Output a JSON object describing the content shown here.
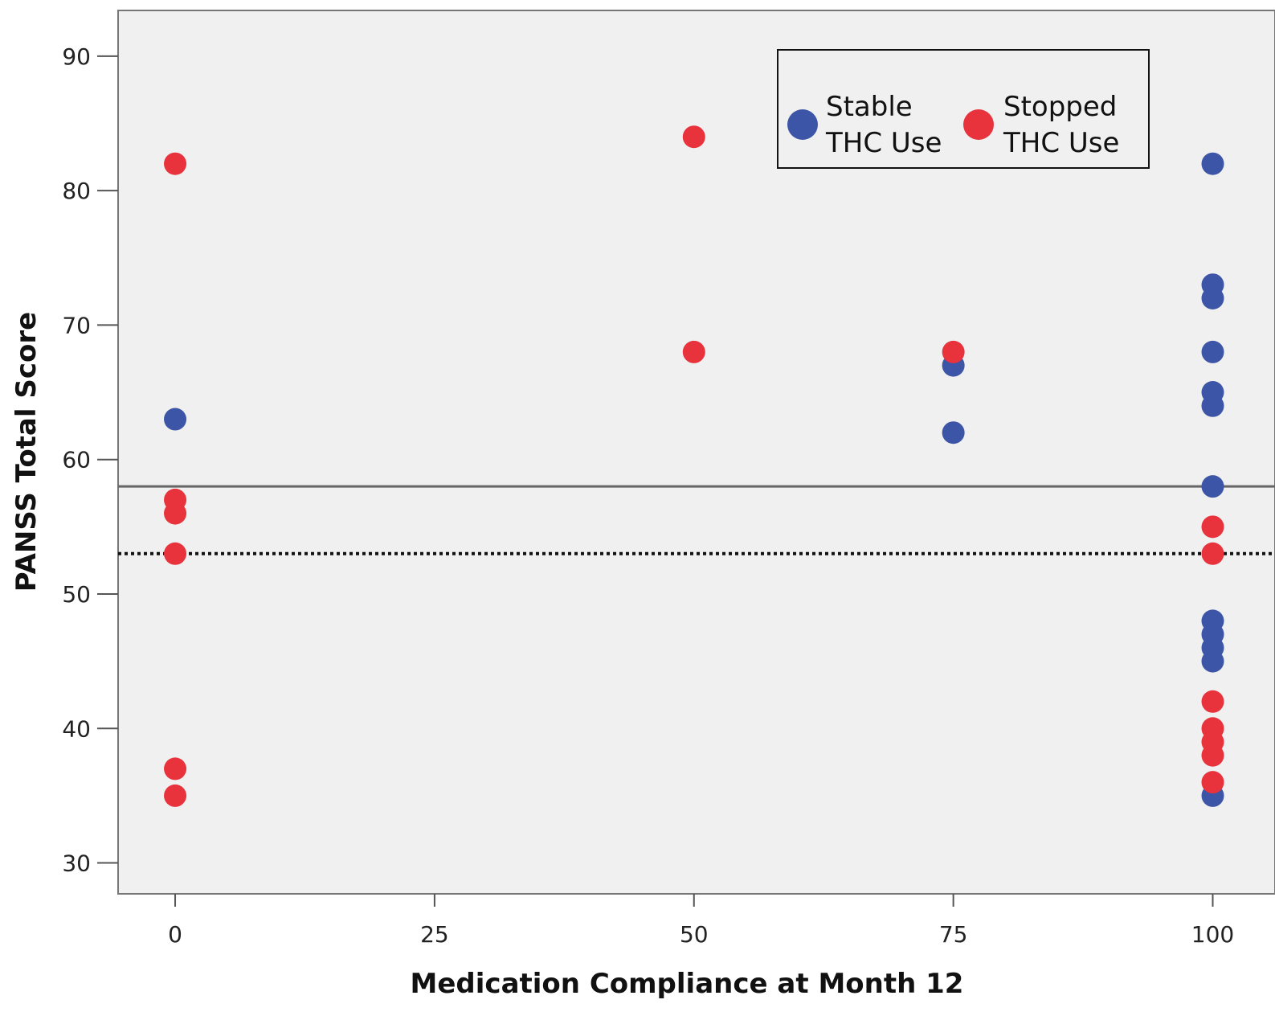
{
  "chart_data": {
    "type": "scatter",
    "title": "",
    "xlabel": "Medication Compliance at Month 12",
    "ylabel": "PANSS Total Score",
    "xlim": [
      -5.5,
      106
    ],
    "ylim": [
      27.7,
      93.4
    ],
    "x_ticks": [
      "0",
      "25",
      "50",
      "75",
      "100"
    ],
    "y_ticks": [
      "30",
      "40",
      "50",
      "60",
      "70",
      "80",
      "90"
    ],
    "grid": false,
    "legend_position": "top-right",
    "series": [
      {
        "name": "Stable THC Use",
        "color": "#3d55a6",
        "points": [
          {
            "x": 0,
            "y": 63
          },
          {
            "x": 75,
            "y": 67
          },
          {
            "x": 75,
            "y": 62
          },
          {
            "x": 100,
            "y": 82
          },
          {
            "x": 100,
            "y": 73
          },
          {
            "x": 100,
            "y": 72
          },
          {
            "x": 100,
            "y": 68
          },
          {
            "x": 100,
            "y": 65
          },
          {
            "x": 100,
            "y": 64
          },
          {
            "x": 100,
            "y": 58
          },
          {
            "x": 100,
            "y": 48
          },
          {
            "x": 100,
            "y": 47
          },
          {
            "x": 100,
            "y": 46
          },
          {
            "x": 100,
            "y": 45
          },
          {
            "x": 100,
            "y": 35
          }
        ]
      },
      {
        "name": "Stopped THC Use",
        "color": "#e8323c",
        "points": [
          {
            "x": 0,
            "y": 82
          },
          {
            "x": 0,
            "y": 57
          },
          {
            "x": 0,
            "y": 56
          },
          {
            "x": 0,
            "y": 53
          },
          {
            "x": 0,
            "y": 37
          },
          {
            "x": 0,
            "y": 35
          },
          {
            "x": 50,
            "y": 84
          },
          {
            "x": 50,
            "y": 68
          },
          {
            "x": 75,
            "y": 68
          },
          {
            "x": 100,
            "y": 55
          },
          {
            "x": 100,
            "y": 53
          },
          {
            "x": 100,
            "y": 42
          },
          {
            "x": 100,
            "y": 40
          },
          {
            "x": 100,
            "y": 39
          },
          {
            "x": 100,
            "y": 38
          },
          {
            "x": 100,
            "y": 36
          }
        ]
      }
    ],
    "reference_lines": [
      {
        "y": 58,
        "style": "solid"
      },
      {
        "y": 53,
        "style": "dotted"
      }
    ]
  },
  "legend": {
    "stable_line1": "Stable",
    "stable_line2": "THC Use",
    "stopped_line1": "Stopped",
    "stopped_line2": "THC Use"
  },
  "colors": {
    "plot_background": "#f0f0f0",
    "axis": "#555555"
  }
}
